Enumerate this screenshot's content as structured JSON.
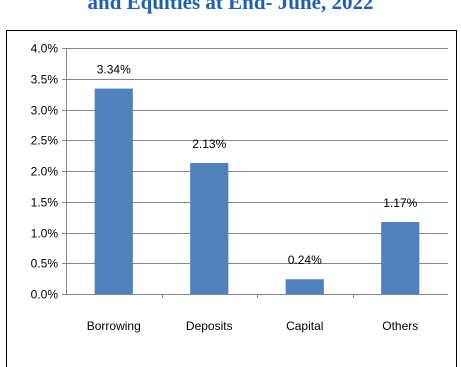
{
  "header": {
    "title_fragment": "and Equities at End- June, 2022"
  },
  "chart_data": {
    "type": "bar",
    "title": "",
    "xlabel": "",
    "ylabel": "",
    "categories": [
      "Borrowing",
      "Deposits",
      "Capital",
      "Others"
    ],
    "values": [
      3.34,
      2.13,
      0.24,
      1.17
    ],
    "data_labels": [
      "3.34%",
      "2.13%",
      "0.24%",
      "1.17%"
    ],
    "ylim": [
      0,
      4.0
    ],
    "y_ticks": [
      0,
      0.5,
      1.0,
      1.5,
      2.0,
      2.5,
      3.0,
      3.5,
      4.0
    ],
    "y_tick_labels": [
      "0.0%",
      "0.5%",
      "1.0%",
      "1.5%",
      "2.0%",
      "2.5%",
      "3.0%",
      "3.5%",
      "4.0%"
    ],
    "grid": true,
    "legend": "none",
    "bar_color": "#4f81bd",
    "grid_color": "#868686"
  }
}
